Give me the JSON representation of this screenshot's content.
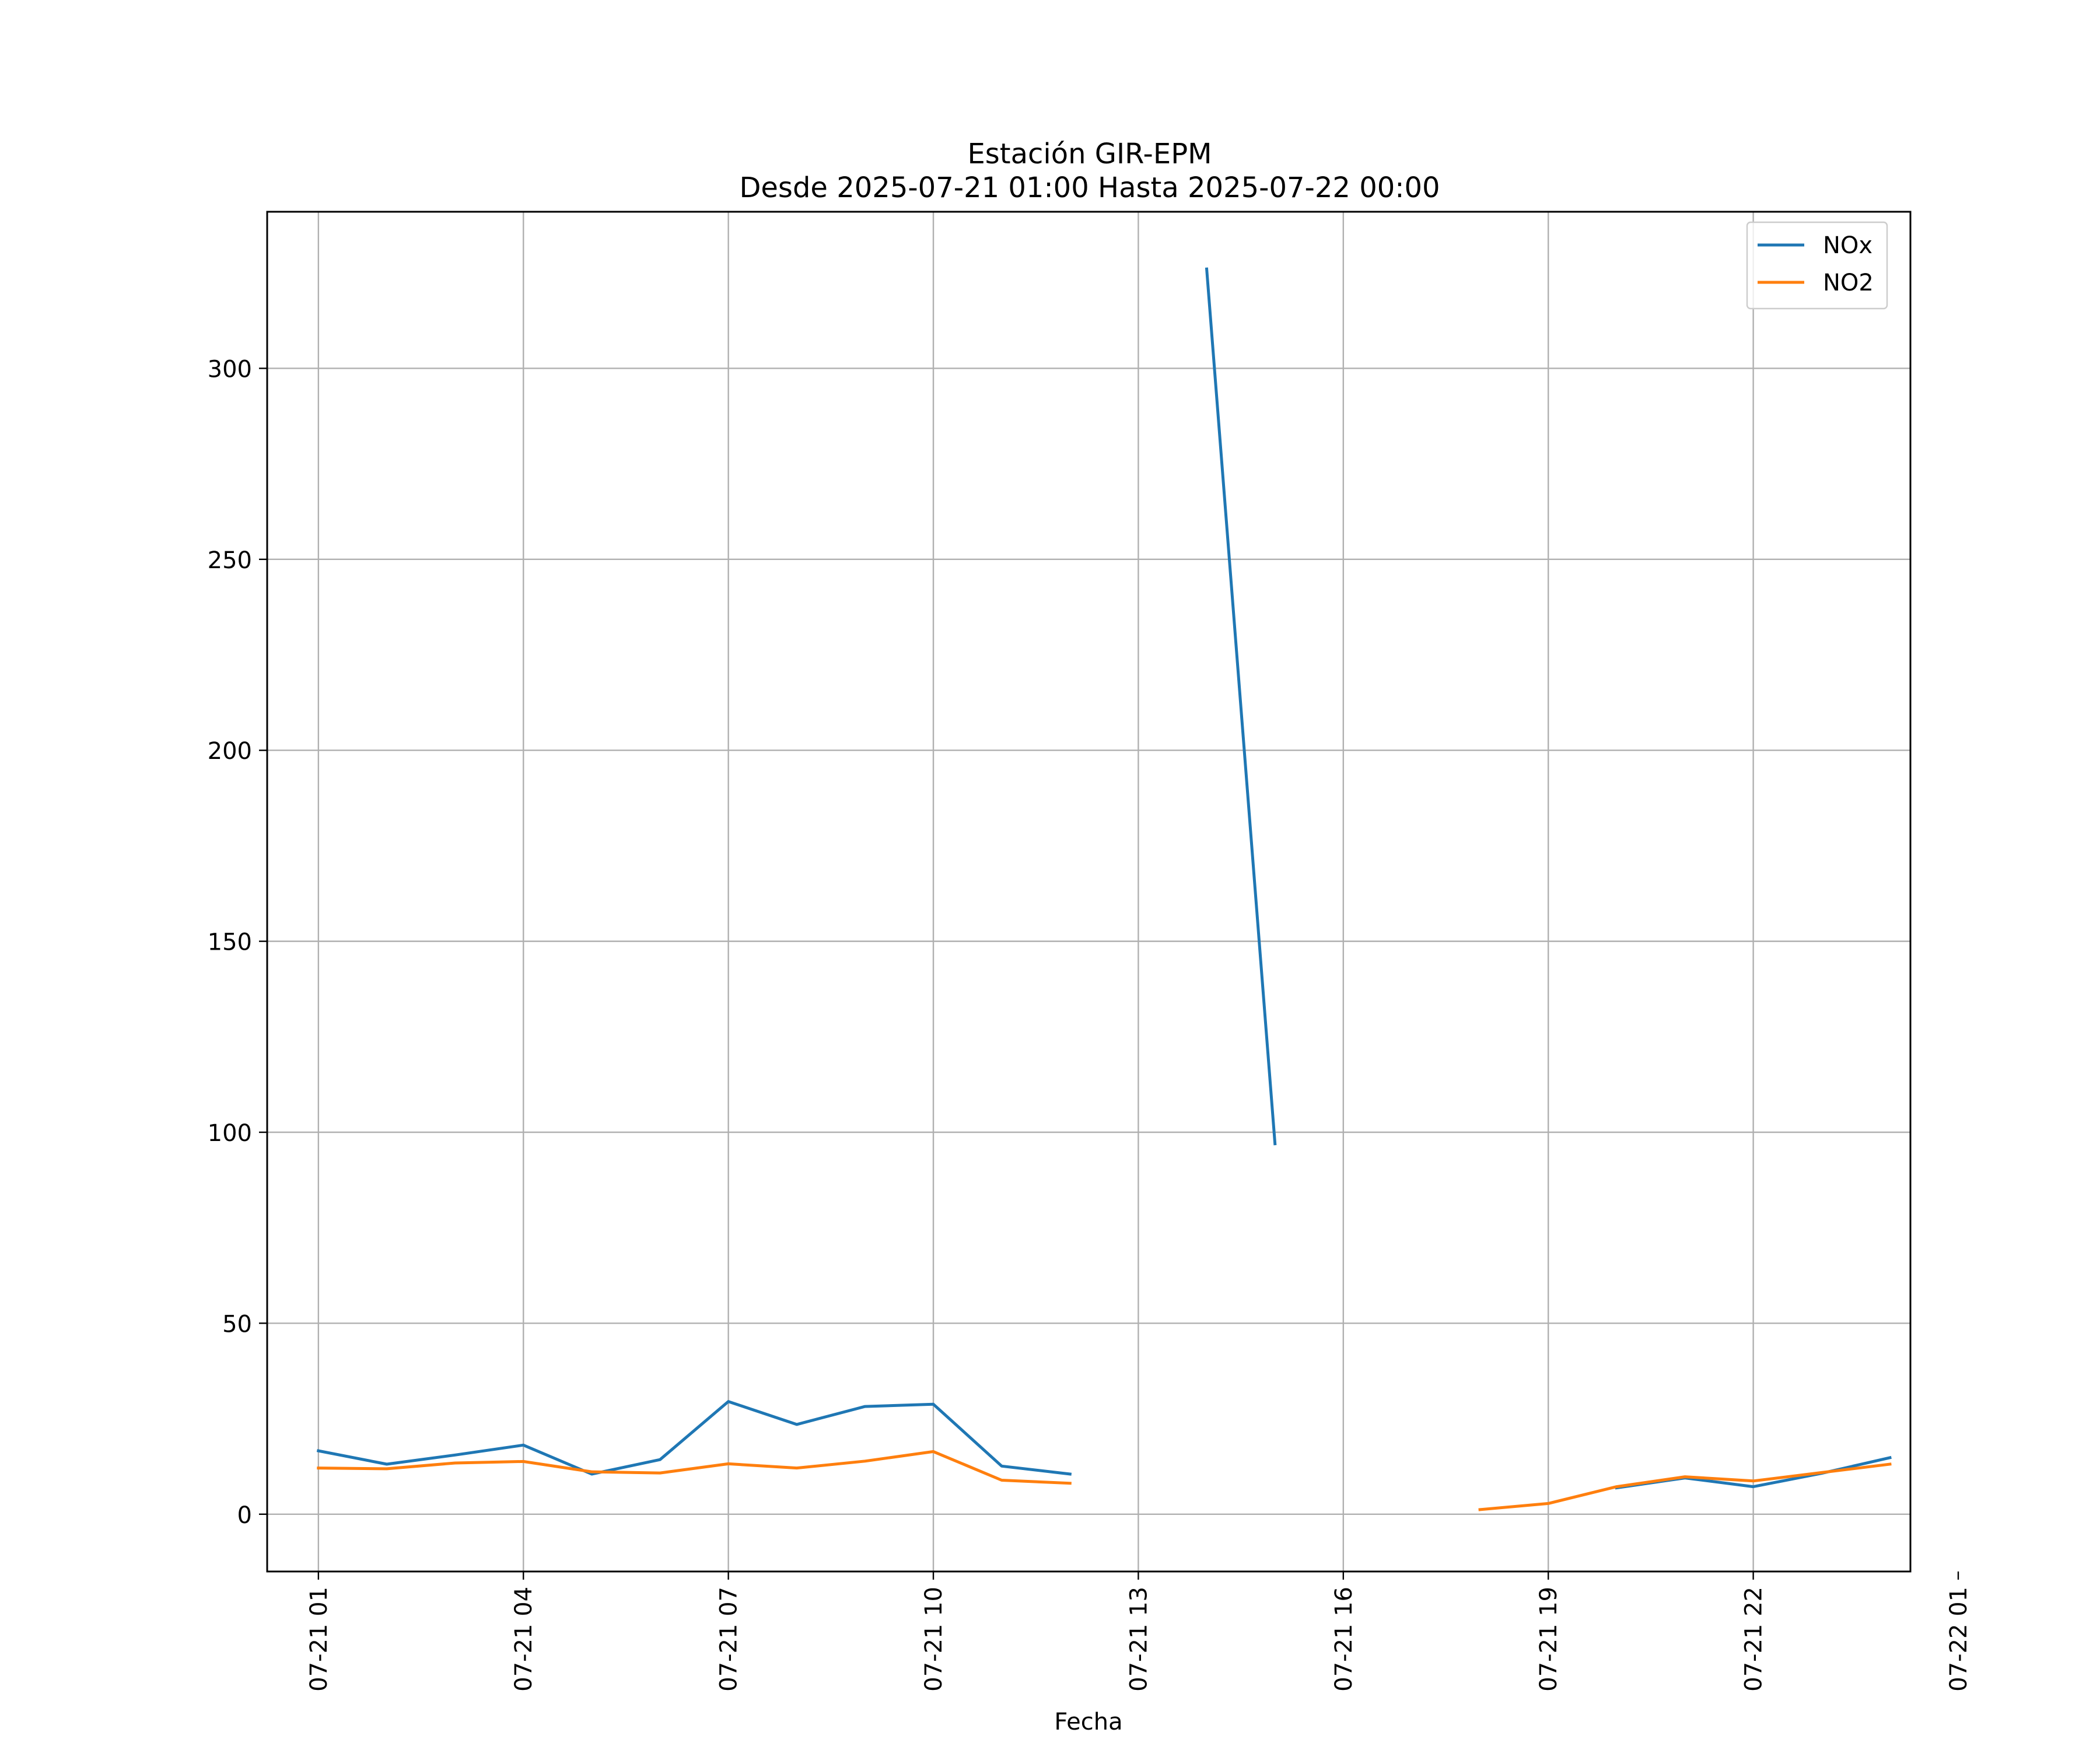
{
  "chart_data": {
    "type": "line",
    "title": "Estación GIR-EPM",
    "subtitle": "Desde 2025-07-21 01:00 Hasta 2025-07-22 00:00",
    "xlabel": "Fecha",
    "ylabel": "",
    "xlim": [
      0.25,
      24.3
    ],
    "ylim": [
      -15,
      341
    ],
    "xticks": [
      {
        "x": 1,
        "label": "07-21 01"
      },
      {
        "x": 4,
        "label": "07-21 04"
      },
      {
        "x": 7,
        "label": "07-21 07"
      },
      {
        "x": 10,
        "label": "07-21 10"
      },
      {
        "x": 13,
        "label": "07-21 13"
      },
      {
        "x": 16,
        "label": "07-21 16"
      },
      {
        "x": 19,
        "label": "07-21 19"
      },
      {
        "x": 22,
        "label": "07-21 22"
      },
      {
        "x": 25,
        "label": "07-22 01"
      }
    ],
    "yticks": [
      0,
      50,
      100,
      150,
      200,
      250,
      300
    ],
    "grid": true,
    "legend_position": "top-right",
    "series": [
      {
        "name": "NOx",
        "color": "#1f77b4",
        "x": [
          1,
          2,
          3,
          4,
          5,
          6,
          7,
          8,
          9,
          10,
          11,
          12,
          13,
          14,
          15,
          16,
          17,
          18,
          19,
          20,
          21,
          22,
          23,
          24
        ],
        "values": [
          16.6,
          13.1,
          15.5,
          18.1,
          10.5,
          14.3,
          29.5,
          23.5,
          28.2,
          28.8,
          12.6,
          10.5,
          null,
          326,
          97,
          null,
          null,
          null,
          null,
          6.9,
          9.5,
          7.2,
          10.7,
          14.8
        ]
      },
      {
        "name": "NO2",
        "color": "#ff7f0e",
        "x": [
          1,
          2,
          3,
          4,
          5,
          6,
          7,
          8,
          9,
          10,
          11,
          12,
          13,
          14,
          15,
          16,
          17,
          18,
          19,
          20,
          21,
          22,
          23,
          24
        ],
        "values": [
          12.1,
          11.9,
          13.4,
          13.8,
          11.1,
          10.8,
          13.2,
          12.1,
          13.9,
          16.4,
          8.9,
          8.1,
          null,
          null,
          null,
          null,
          null,
          1.2,
          2.8,
          7.2,
          9.8,
          8.7,
          10.9,
          13.1
        ]
      }
    ]
  }
}
